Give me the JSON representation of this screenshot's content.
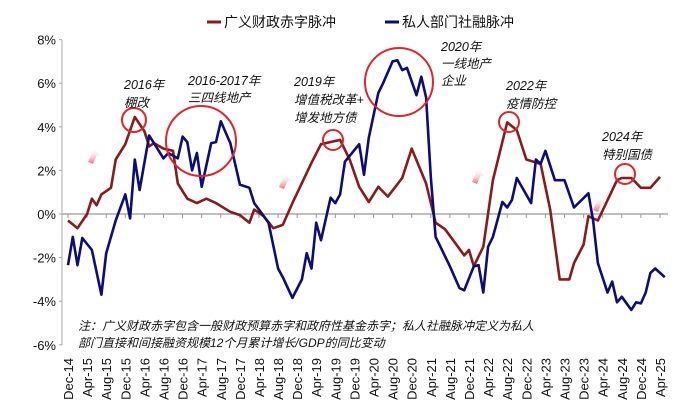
{
  "chart_data": {
    "type": "line",
    "title": "",
    "xlabel": "",
    "ylabel": "",
    "ylim": [
      -6,
      8
    ],
    "yticks": [
      "8%",
      "6%",
      "4%",
      "2%",
      "0%",
      "-2%",
      "-4%",
      "-6%"
    ],
    "ytick_values": [
      8,
      6,
      4,
      2,
      0,
      -2,
      -4,
      -6
    ],
    "xticks": [
      "Dec-14",
      "Apr-15",
      "Aug-15",
      "Dec-15",
      "Apr-16",
      "Aug-16",
      "Dec-16",
      "Apr-17",
      "Aug-17",
      "Dec-17",
      "Apr-18",
      "Aug-18",
      "Dec-18",
      "Apr-19",
      "Aug-19",
      "Dec-19",
      "Apr-20",
      "Aug-20",
      "Dec-20",
      "Apr-21",
      "Aug-21",
      "Dec-21",
      "Apr-22",
      "Aug-22",
      "Dec-22",
      "Apr-23",
      "Aug-23",
      "Dec-23",
      "Apr-24",
      "Aug-24",
      "Dec-24",
      "Apr-25"
    ],
    "xlim": [
      "2014-12",
      "2025-05"
    ],
    "grid": false,
    "legend_position": "top-center",
    "series": [
      {
        "name": "广义财政赤字脉冲",
        "color": "#8b1a1a",
        "points": [
          [
            "2014-12",
            -0.3
          ],
          [
            "2015-02",
            -0.65
          ],
          [
            "2015-04",
            0.0
          ],
          [
            "2015-05",
            0.7
          ],
          [
            "2015-06",
            0.4
          ],
          [
            "2015-07",
            0.9
          ],
          [
            "2015-09",
            1.2
          ],
          [
            "2015-10",
            2.5
          ],
          [
            "2015-12",
            3.2
          ],
          [
            "2016-02",
            4.45
          ],
          [
            "2016-04",
            3.8
          ],
          [
            "2016-05",
            3.1
          ],
          [
            "2016-06",
            3.25
          ],
          [
            "2016-08",
            3.0
          ],
          [
            "2016-10",
            2.9
          ],
          [
            "2016-11",
            1.4
          ],
          [
            "2017-01",
            0.7
          ],
          [
            "2017-03",
            0.5
          ],
          [
            "2017-05",
            0.7
          ],
          [
            "2017-07",
            0.5
          ],
          [
            "2017-10",
            0.1
          ],
          [
            "2017-12",
            -0.05
          ],
          [
            "2018-02",
            -0.4
          ],
          [
            "2018-03",
            0.2
          ],
          [
            "2018-05",
            -0.1
          ],
          [
            "2018-07",
            -0.65
          ],
          [
            "2018-09",
            -0.5
          ],
          [
            "2018-11",
            0.5
          ],
          [
            "2019-03",
            2.35
          ],
          [
            "2019-05",
            3.2
          ],
          [
            "2019-09",
            3.4
          ],
          [
            "2019-11",
            2.5
          ],
          [
            "2020-01",
            1.25
          ],
          [
            "2020-03",
            0.55
          ],
          [
            "2020-05",
            1.25
          ],
          [
            "2020-07",
            0.8
          ],
          [
            "2020-10",
            1.65
          ],
          [
            "2020-12",
            3.0
          ],
          [
            "2021-03",
            1.4
          ],
          [
            "2021-05",
            -0.4
          ],
          [
            "2021-07",
            -0.7
          ],
          [
            "2021-09",
            -1.3
          ],
          [
            "2021-11",
            -1.9
          ],
          [
            "2021-12",
            -1.65
          ],
          [
            "2022-01",
            -2.4
          ],
          [
            "2022-03",
            -1.5
          ],
          [
            "2022-05",
            1.55
          ],
          [
            "2022-08",
            4.2
          ],
          [
            "2022-10",
            3.85
          ],
          [
            "2022-12",
            2.5
          ],
          [
            "2023-03",
            2.3
          ],
          [
            "2023-05",
            0.2
          ],
          [
            "2023-07",
            -3.0
          ],
          [
            "2023-09",
            -3.0
          ],
          [
            "2023-10",
            -2.25
          ],
          [
            "2023-12",
            -1.4
          ],
          [
            "2024-01",
            -0.1
          ],
          [
            "2024-03",
            -0.3
          ],
          [
            "2024-07",
            1.55
          ],
          [
            "2024-08",
            1.65
          ],
          [
            "2024-10",
            1.65
          ],
          [
            "2024-12",
            1.2
          ],
          [
            "2025-02",
            1.2
          ],
          [
            "2025-04",
            1.7
          ]
        ]
      },
      {
        "name": "私人部门社融脉冲",
        "color": "#0c0c7a",
        "points": [
          [
            "2014-12",
            -2.35
          ],
          [
            "2015-01",
            -1.05
          ],
          [
            "2015-02",
            -2.35
          ],
          [
            "2015-03",
            -1.1
          ],
          [
            "2015-05",
            -1.65
          ],
          [
            "2015-07",
            -3.7
          ],
          [
            "2015-08",
            -1.8
          ],
          [
            "2015-10",
            -0.3
          ],
          [
            "2015-12",
            0.9
          ],
          [
            "2016-01",
            -0.2
          ],
          [
            "2016-02",
            2.5
          ],
          [
            "2016-03",
            1.1
          ],
          [
            "2016-05",
            3.6
          ],
          [
            "2016-06",
            3.25
          ],
          [
            "2016-08",
            2.55
          ],
          [
            "2016-09",
            2.8
          ],
          [
            "2016-11",
            2.55
          ],
          [
            "2016-12",
            3.55
          ],
          [
            "2017-01",
            3.3
          ],
          [
            "2017-02",
            2.0
          ],
          [
            "2017-03",
            2.8
          ],
          [
            "2017-04",
            1.25
          ],
          [
            "2017-06",
            3.25
          ],
          [
            "2017-07",
            3.3
          ],
          [
            "2017-08",
            4.25
          ],
          [
            "2017-10",
            3.25
          ],
          [
            "2017-12",
            1.35
          ],
          [
            "2018-02",
            1.2
          ],
          [
            "2018-03",
            0.5
          ],
          [
            "2018-06",
            -0.4
          ],
          [
            "2018-08",
            -2.5
          ],
          [
            "2018-09",
            -2.9
          ],
          [
            "2018-11",
            -3.85
          ],
          [
            "2019-01",
            -3.0
          ],
          [
            "2019-02",
            -1.8
          ],
          [
            "2019-03",
            -2.5
          ],
          [
            "2019-04",
            -0.4
          ],
          [
            "2019-05",
            -1.2
          ],
          [
            "2019-07",
            0.75
          ],
          [
            "2019-08",
            0.5
          ],
          [
            "2019-09",
            0.9
          ],
          [
            "2019-10",
            2.4
          ],
          [
            "2020-01",
            3.2
          ],
          [
            "2020-02",
            1.8
          ],
          [
            "2020-03",
            3.5
          ],
          [
            "2020-05",
            5.55
          ],
          [
            "2020-06",
            6.0
          ],
          [
            "2020-08",
            7.0
          ],
          [
            "2020-09",
            7.05
          ],
          [
            "2020-10",
            6.6
          ],
          [
            "2020-11",
            6.7
          ],
          [
            "2021-01",
            5.45
          ],
          [
            "2021-02",
            6.3
          ],
          [
            "2021-03",
            5.35
          ],
          [
            "2021-04",
            1.7
          ],
          [
            "2021-05",
            -1.05
          ],
          [
            "2021-06",
            -1.5
          ],
          [
            "2021-08",
            -2.4
          ],
          [
            "2021-10",
            -3.4
          ],
          [
            "2021-11",
            -3.5
          ],
          [
            "2022-01",
            -2.4
          ],
          [
            "2022-02",
            -2.35
          ],
          [
            "2022-03",
            -3.6
          ],
          [
            "2022-04",
            -1.5
          ],
          [
            "2022-05",
            -1.05
          ],
          [
            "2022-07",
            0.55
          ],
          [
            "2022-08",
            0.3
          ],
          [
            "2022-09",
            0.65
          ],
          [
            "2022-10",
            1.65
          ],
          [
            "2023-01",
            0.5
          ],
          [
            "2023-02",
            2.5
          ],
          [
            "2023-03",
            2.3
          ],
          [
            "2023-04",
            2.9
          ],
          [
            "2023-06",
            1.55
          ],
          [
            "2023-08",
            1.55
          ],
          [
            "2023-10",
            0.3
          ],
          [
            "2024-01",
            0.95
          ],
          [
            "2024-02",
            -0.3
          ],
          [
            "2024-03",
            -2.25
          ],
          [
            "2024-05",
            -3.6
          ],
          [
            "2024-06",
            -3.1
          ],
          [
            "2024-07",
            -4.05
          ],
          [
            "2024-08",
            -3.8
          ],
          [
            "2024-10",
            -4.4
          ],
          [
            "2024-11",
            -4.05
          ],
          [
            "2024-12",
            -4.1
          ],
          [
            "2025-01",
            -3.6
          ],
          [
            "2025-02",
            -2.7
          ],
          [
            "2025-03",
            -2.5
          ],
          [
            "2025-05",
            -2.9
          ]
        ]
      }
    ],
    "annotations": [
      {
        "year": "2016年",
        "text": "棚改"
      },
      {
        "year": "2016-2017年",
        "text": "三四线地产"
      },
      {
        "year": "2019年",
        "text": "增值税改革+",
        "text2": "增发地方债"
      },
      {
        "year": "2020年",
        "text": "一线地产",
        "text2": "企业"
      },
      {
        "year": "2022年",
        "text": "疫情防控"
      },
      {
        "year": "2024年",
        "text": "特别国债"
      }
    ],
    "note": {
      "line1": "注：广义财政赤字包含一般财政预算赤字和政府性基金赤字；私人社融脉冲定义为私人",
      "line2": "部门直接和间接融资规模12个月累计增长/GDP的同比变动"
    },
    "highlight_color": "#e0262b",
    "arrow_color": "#f2838a"
  }
}
